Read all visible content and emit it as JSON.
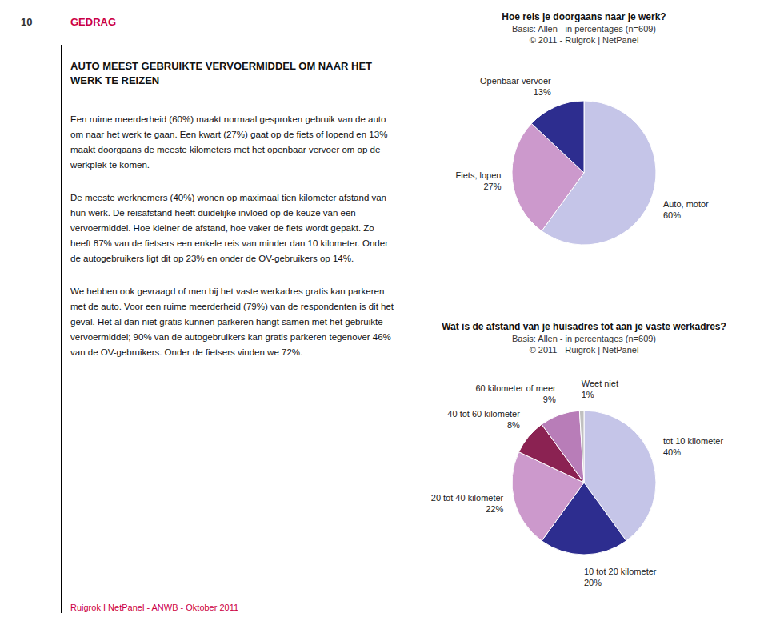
{
  "chart_data": [
    {
      "type": "pie",
      "title": "Hoe reis je doorgaans naar je werk?",
      "subtitle": [
        "Basis: Allen - in percentages (n=609)",
        "© 2011 - Ruigrok | NetPanel"
      ],
      "categories": [
        "Auto, motor",
        "Fiets, lopen",
        "Openbaar vervoer"
      ],
      "values": [
        60,
        27,
        13
      ],
      "value_labels": [
        "60%",
        "27%",
        "13%"
      ],
      "colors": [
        "#c5c5e8",
        "#cc99cc",
        "#2d2d8f"
      ],
      "data_labels": true,
      "annotations": [
        {
          "text": "10"
        },
        {
          "text": "GEDRAG",
          "color": "#cc0044"
        },
        {
          "text": "AUTO MEEST GEBRUIKTE VERVOERMIDDEL OM NAAR HET WERK TE REIZEN"
        },
        {
          "text": "Een ruime meerderheid (60%) maakt normaal gesproken gebruik van de auto om naar het werk te gaan. Een kwart (27%) gaat op de fiets of lopend en 13% maakt doorgaans de meeste kilometers met het openbaar vervoer om op de werkplek te komen."
        },
        {
          "text": "De meeste werknemers (40%) wonen op maximaal tien kilometer afstand van hun werk. De reisafstand heeft duidelijke invloed op de keuze van een vervoermiddel. Hoe kleiner de afstand, hoe vaker de fiets wordt gepakt. Zo heeft 87% van de fietsers een enkele reis van minder dan 10 kilometer. Onder de autogebruikers ligt dit op 23% en onder de OV-gebruikers op 14%."
        },
        {
          "text": "We hebben ook gevraagd of men bij het vaste werkadres gratis kan parkeren met de auto. Voor een ruime meerderheid (79%) van de respondenten is dit het geval. Het al dan niet gratis kunnen parkeren hangt samen met het gebruikte vervoermiddel; 90% van de autogebruikers kan gratis parkeren tegenover 46% van de OV-gebruikers. Onder de fietsers vinden we 72%."
        },
        {
          "text": "Ruigrok I NetPanel - ANWB - Oktober 2011",
          "color": "#cc0044"
        }
      ]
    },
    {
      "type": "pie",
      "title": "Wat is de afstand van je huisadres tot aan je vaste werkadres?",
      "subtitle": [
        "Basis: Allen - in percentages (n=609)",
        "© 2011 - Ruigrok | NetPanel"
      ],
      "categories": [
        "tot 10 kilometer",
        "10 tot 20 kilometer",
        "20 tot 40 kilometer",
        "40 tot 60 kilometer",
        "60 kilometer of meer",
        "Weet niet"
      ],
      "values": [
        40,
        20,
        22,
        8,
        9,
        1
      ],
      "value_labels": [
        "40%",
        "20%",
        "22%",
        "8%",
        "9%",
        "1%"
      ],
      "colors": [
        "#c5c5e8",
        "#2d2d8f",
        "#cc99cc",
        "#8b2252",
        "#b87db8",
        "#c0c0c0"
      ],
      "data_labels": true
    }
  ]
}
